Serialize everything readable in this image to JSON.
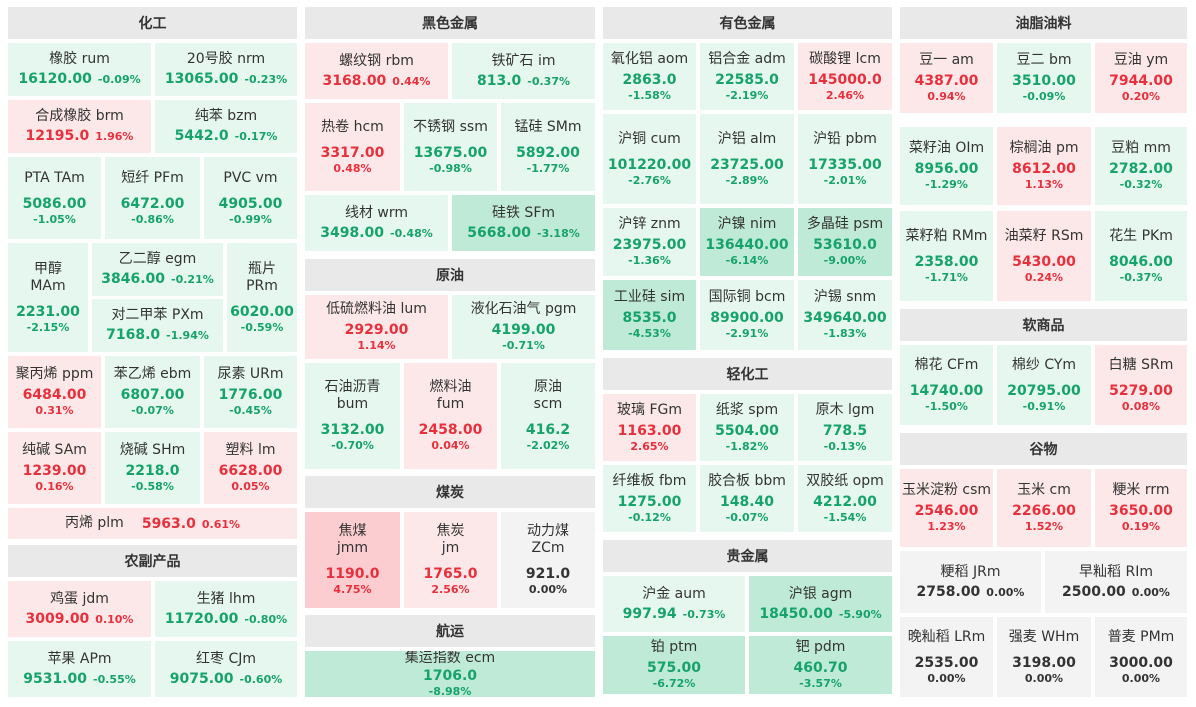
{
  "colors": {
    "up_light": "#fde8e9",
    "up_strong": "#fbcdd0",
    "down_light": "#e6f7ef",
    "down_strong": "#c0ead8",
    "flat": "#f3f3f3",
    "up_text": "#e8303c",
    "down_text": "#15a36a"
  },
  "sections": {
    "chemical": "化工",
    "ferrous": "黑色金属",
    "nonferrous": "有色金属",
    "oils": "油脂油料",
    "crude": "原油",
    "coal": "煤炭",
    "shipping": "航运",
    "lightchem": "轻化工",
    "precious": "贵金属",
    "soft": "软商品",
    "grains": "谷物",
    "agri": "农副产品"
  },
  "t": {
    "rum": {
      "name": "橡胶 rum",
      "price": "16120.00",
      "pct": "-0.09%"
    },
    "nrm": {
      "name": "20号胶 nrm",
      "price": "13065.00",
      "pct": "-0.23%"
    },
    "brm": {
      "name": "合成橡胶 brm",
      "price": "12195.0",
      "pct": "1.96%"
    },
    "bzm": {
      "name": "纯苯 bzm",
      "price": "5442.0",
      "pct": "-0.17%"
    },
    "TAm": {
      "name": "PTA TAm",
      "price": "5086.00",
      "pct": "-1.05%"
    },
    "PFm": {
      "name": "短纤 PFm",
      "price": "6472.00",
      "pct": "-0.86%"
    },
    "vm": {
      "name": "PVC vm",
      "price": "4905.00",
      "pct": "-0.99%"
    },
    "MAm": {
      "name": "甲醇\nMAm",
      "price": "2231.00",
      "pct": "-2.15%"
    },
    "egm": {
      "name": "乙二醇 egm",
      "price": "3846.00",
      "pct": "-0.21%"
    },
    "PXm": {
      "name": "对二甲苯 PXm",
      "price": "7168.0",
      "pct": "-1.94%"
    },
    "PRm": {
      "name": "瓶片\nPRm",
      "price": "6020.00",
      "pct": "-0.59%"
    },
    "ppm": {
      "name": "聚丙烯 ppm",
      "price": "6484.00",
      "pct": "0.31%"
    },
    "ebm": {
      "name": "苯乙烯 ebm",
      "price": "6807.00",
      "pct": "-0.07%"
    },
    "URm": {
      "name": "尿素 URm",
      "price": "1776.00",
      "pct": "-0.45%"
    },
    "SAm": {
      "name": "纯碱 SAm",
      "price": "1239.00",
      "pct": "0.16%"
    },
    "SHm": {
      "name": "烧碱 SHm",
      "price": "2218.0",
      "pct": "-0.58%"
    },
    "lm": {
      "name": "塑料 lm",
      "price": "6628.00",
      "pct": "0.05%"
    },
    "plm": {
      "name": "丙烯 plm",
      "price": "5963.0",
      "pct": "0.61%"
    },
    "jdm": {
      "name": "鸡蛋 jdm",
      "price": "3009.00",
      "pct": "0.10%"
    },
    "lhm": {
      "name": "生猪 lhm",
      "price": "11720.00",
      "pct": "-0.80%"
    },
    "APm": {
      "name": "苹果 APm",
      "price": "9531.00",
      "pct": "-0.55%"
    },
    "CJm": {
      "name": "红枣 CJm",
      "price": "9075.00",
      "pct": "-0.60%"
    },
    "rbm": {
      "name": "螺纹钢 rbm",
      "price": "3168.00",
      "pct": "0.44%"
    },
    "im": {
      "name": "铁矿石 im",
      "price": "813.0",
      "pct": "-0.37%"
    },
    "hcm": {
      "name": "热卷 hcm",
      "price": "3317.00",
      "pct": "0.48%"
    },
    "ssm": {
      "name": "不锈钢 ssm",
      "price": "13675.00",
      "pct": "-0.98%"
    },
    "SMm": {
      "name": "锰硅 SMm",
      "price": "5892.00",
      "pct": "-1.77%"
    },
    "wrm": {
      "name": "线材 wrm",
      "price": "3498.00",
      "pct": "-0.48%"
    },
    "SFm": {
      "name": "硅铁 SFm",
      "price": "5668.00",
      "pct": "-3.18%"
    },
    "lum": {
      "name": "低硫燃料油 lum",
      "price": "2929.00",
      "pct": "1.14%"
    },
    "pgm": {
      "name": "液化石油气 pgm",
      "price": "4199.00",
      "pct": "-0.71%"
    },
    "bum": {
      "name": "石油沥青\nbum",
      "price": "3132.00",
      "pct": "-0.70%"
    },
    "fum": {
      "name": "燃料油\nfum",
      "price": "2458.00",
      "pct": "0.04%"
    },
    "scm": {
      "name": "原油\nscm",
      "price": "416.2",
      "pct": "-2.02%"
    },
    "jmm": {
      "name": "焦煤\njmm",
      "price": "1190.0",
      "pct": "4.75%"
    },
    "jm": {
      "name": "焦炭\njm",
      "price": "1765.0",
      "pct": "2.56%"
    },
    "ZCm": {
      "name": "动力煤\nZCm",
      "price": "921.0",
      "pct": "0.00%"
    },
    "ecm": {
      "name": "集运指数 ecm",
      "price": "1706.0",
      "pct": "-8.98%"
    },
    "aom": {
      "name": "氧化铝 aom",
      "price": "2863.0",
      "pct": "-1.58%"
    },
    "adm": {
      "name": "铝合金 adm",
      "price": "22585.0",
      "pct": "-2.19%"
    },
    "lcm": {
      "name": "碳酸锂 lcm",
      "price": "145000.0",
      "pct": "2.46%"
    },
    "cum": {
      "name": "沪铜 cum",
      "price": "101220.00",
      "pct": "-2.76%"
    },
    "alm": {
      "name": "沪铝 alm",
      "price": "23725.00",
      "pct": "-2.89%"
    },
    "pbm": {
      "name": "沪铅 pbm",
      "price": "17335.00",
      "pct": "-2.01%"
    },
    "znm": {
      "name": "沪锌 znm",
      "price": "23975.00",
      "pct": "-1.36%"
    },
    "nim": {
      "name": "沪镍 nim",
      "price": "136440.00",
      "pct": "-6.14%"
    },
    "psm": {
      "name": "多晶硅 psm",
      "price": "53610.0",
      "pct": "-9.00%"
    },
    "sim": {
      "name": "工业硅 sim",
      "price": "8535.0",
      "pct": "-4.53%"
    },
    "bcm": {
      "name": "国际铜 bcm",
      "price": "89900.00",
      "pct": "-2.91%"
    },
    "snm": {
      "name": "沪锡 snm",
      "price": "349640.00",
      "pct": "-1.83%"
    },
    "FGm": {
      "name": "玻璃 FGm",
      "price": "1163.00",
      "pct": "2.65%"
    },
    "spm": {
      "name": "纸浆 spm",
      "price": "5504.00",
      "pct": "-1.82%"
    },
    "lgm": {
      "name": "原木 lgm",
      "price": "778.5",
      "pct": "-0.13%"
    },
    "fbm": {
      "name": "纤维板 fbm",
      "price": "1275.00",
      "pct": "-0.12%"
    },
    "bbm": {
      "name": "胶合板 bbm",
      "price": "148.40",
      "pct": "-0.07%"
    },
    "opm": {
      "name": "双胶纸 opm",
      "price": "4212.00",
      "pct": "-1.54%"
    },
    "aum": {
      "name": "沪金 aum",
      "price": "997.94",
      "pct": "-0.73%"
    },
    "agm": {
      "name": "沪银 agm",
      "price": "18450.00",
      "pct": "-5.90%"
    },
    "ptm": {
      "name": "铂 ptm",
      "price": "575.00",
      "pct": "-6.72%"
    },
    "pdm": {
      "name": "钯 pdm",
      "price": "460.70",
      "pct": "-3.57%"
    },
    "am": {
      "name": "豆一 am",
      "price": "4387.00",
      "pct": "0.94%"
    },
    "bm": {
      "name": "豆二 bm",
      "price": "3510.00",
      "pct": "-0.09%"
    },
    "ym": {
      "name": "豆油 ym",
      "price": "7944.00",
      "pct": "0.20%"
    },
    "OIm": {
      "name": "菜籽油 OIm",
      "price": "8956.00",
      "pct": "-1.29%"
    },
    "pm": {
      "name": "棕榈油 pm",
      "price": "8612.00",
      "pct": "1.13%"
    },
    "mm": {
      "name": "豆粕 mm",
      "price": "2782.00",
      "pct": "-0.32%"
    },
    "RMm": {
      "name": "菜籽粕 RMm",
      "price": "2358.00",
      "pct": "-1.71%"
    },
    "RSm": {
      "name": "油菜籽 RSm",
      "price": "5430.00",
      "pct": "0.24%"
    },
    "PKm": {
      "name": "花生 PKm",
      "price": "8046.00",
      "pct": "-0.37%"
    },
    "CFm": {
      "name": "棉花 CFm",
      "price": "14740.00",
      "pct": "-1.50%"
    },
    "CYm": {
      "name": "棉纱 CYm",
      "price": "20795.00",
      "pct": "-0.91%"
    },
    "SRm": {
      "name": "白糖 SRm",
      "price": "5279.00",
      "pct": "0.08%"
    },
    "csm": {
      "name": "玉米淀粉 csm",
      "price": "2546.00",
      "pct": "1.23%"
    },
    "cm": {
      "name": "玉米 cm",
      "price": "2266.00",
      "pct": "1.52%"
    },
    "rrm": {
      "name": "粳米 rrm",
      "price": "3650.00",
      "pct": "0.19%"
    },
    "JRm": {
      "name": "粳稻 JRm",
      "price": "2758.00",
      "pct": "0.00%"
    },
    "RIm": {
      "name": "早籼稻 RIm",
      "price": "2500.00",
      "pct": "0.00%"
    },
    "LRm": {
      "name": "晚籼稻 LRm",
      "price": "2535.00",
      "pct": "0.00%"
    },
    "WHm": {
      "name": "强麦 WHm",
      "price": "3198.00",
      "pct": "0.00%"
    },
    "PMm": {
      "name": "普麦 PMm",
      "price": "3000.00",
      "pct": "0.00%"
    }
  }
}
